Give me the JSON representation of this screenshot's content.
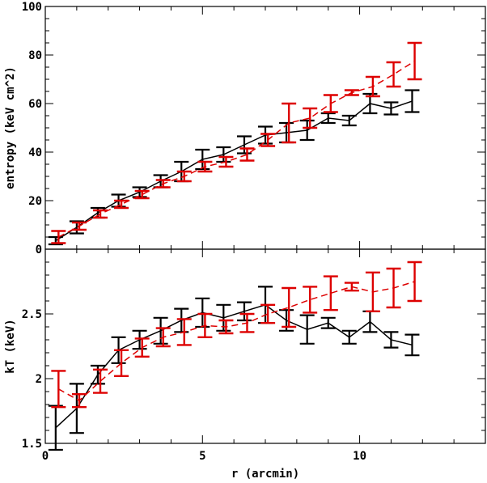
{
  "chart_data": [
    {
      "type": "line",
      "panel": "top",
      "title": "",
      "xlabel": "",
      "ylabel": "entropy (keV cm^2)",
      "xlim": [
        0,
        14
      ],
      "ylim": [
        0,
        100
      ],
      "yticks": [
        0,
        20,
        40,
        60,
        80,
        100
      ],
      "ytick_labels": [
        "0",
        "20",
        "40",
        "60",
        "80",
        "100"
      ],
      "grid": false,
      "series": [
        {
          "color": "#000000",
          "linestyle": "solid",
          "x": [
            0.33,
            1.0,
            1.67,
            2.33,
            3.0,
            3.67,
            4.33,
            5.0,
            5.67,
            6.33,
            7.0,
            7.67,
            8.33,
            9.0,
            9.67,
            10.33,
            11.0,
            11.67
          ],
          "y": [
            3.5,
            9,
            15,
            20,
            23.5,
            28,
            32,
            37,
            39,
            43,
            47,
            48,
            49,
            54,
            53,
            60,
            58,
            61
          ],
          "err": [
            1.5,
            2.5,
            2,
            2.5,
            2,
            2.5,
            4,
            4,
            3,
            3.5,
            3.5,
            4,
            4,
            2,
            2,
            4,
            2.5,
            4.5
          ]
        },
        {
          "color": "#dd0000",
          "linestyle": "dashed",
          "x": [
            0.42,
            1.08,
            1.75,
            2.42,
            3.08,
            3.75,
            4.42,
            5.08,
            5.75,
            6.42,
            7.08,
            7.75,
            8.42,
            9.08,
            9.75,
            10.42,
            11.08,
            11.75
          ],
          "y": [
            5,
            9.5,
            14.5,
            18.5,
            22.5,
            27,
            30,
            34,
            36,
            39,
            45,
            52,
            54,
            60,
            64.5,
            67,
            72,
            77.5
          ],
          "err": [
            2.5,
            1.5,
            1.5,
            1.5,
            1.5,
            1.5,
            2,
            2,
            2,
            2.5,
            2.5,
            8,
            4,
            3.5,
            1,
            4,
            5,
            7.5
          ]
        }
      ]
    },
    {
      "type": "line",
      "panel": "bottom",
      "title": "",
      "xlabel": "r (arcmin)",
      "ylabel": "kT (keV)",
      "xlim": [
        0,
        14
      ],
      "ylim": [
        1.5,
        3.0
      ],
      "xticks": [
        0,
        5,
        10
      ],
      "xtick_labels": [
        "0",
        "5",
        "10"
      ],
      "yticks": [
        1.5,
        2,
        2.5
      ],
      "ytick_labels": [
        "1.5",
        "2",
        "2.5"
      ],
      "grid": false,
      "series": [
        {
          "color": "#000000",
          "linestyle": "solid",
          "x": [
            0.33,
            1.0,
            1.67,
            2.33,
            3.0,
            3.67,
            4.33,
            5.0,
            5.67,
            6.33,
            7.0,
            7.67,
            8.33,
            9.0,
            9.67,
            10.33,
            11.0,
            11.67
          ],
          "y": [
            1.62,
            1.77,
            2.03,
            2.22,
            2.3,
            2.37,
            2.45,
            2.51,
            2.47,
            2.52,
            2.57,
            2.45,
            2.38,
            2.43,
            2.32,
            2.44,
            2.3,
            2.26
          ],
          "err": [
            0.17,
            0.19,
            0.07,
            0.1,
            0.07,
            0.1,
            0.09,
            0.11,
            0.1,
            0.07,
            0.14,
            0.08,
            0.11,
            0.04,
            0.05,
            0.08,
            0.06,
            0.08
          ]
        },
        {
          "color": "#dd0000",
          "linestyle": "dashed",
          "x": [
            0.42,
            1.08,
            1.75,
            2.42,
            3.08,
            3.75,
            4.42,
            5.08,
            5.75,
            6.42,
            7.08,
            7.75,
            8.42,
            9.08,
            9.75,
            10.42,
            11.08,
            11.75
          ],
          "y": [
            1.92,
            1.83,
            1.98,
            2.12,
            2.24,
            2.32,
            2.36,
            2.41,
            2.4,
            2.43,
            2.5,
            2.55,
            2.61,
            2.66,
            2.71,
            2.67,
            2.7,
            2.75
          ],
          "err": [
            0.14,
            0.05,
            0.09,
            0.1,
            0.07,
            0.07,
            0.1,
            0.09,
            0.05,
            0.07,
            0.07,
            0.15,
            0.1,
            0.13,
            0.03,
            0.15,
            0.15,
            0.15
          ]
        }
      ]
    }
  ],
  "labels": {
    "top_ylabel": "entropy (keV cm^2)",
    "bottom_ylabel": "kT  (keV)",
    "xlabel": "r  (arcmin)"
  }
}
